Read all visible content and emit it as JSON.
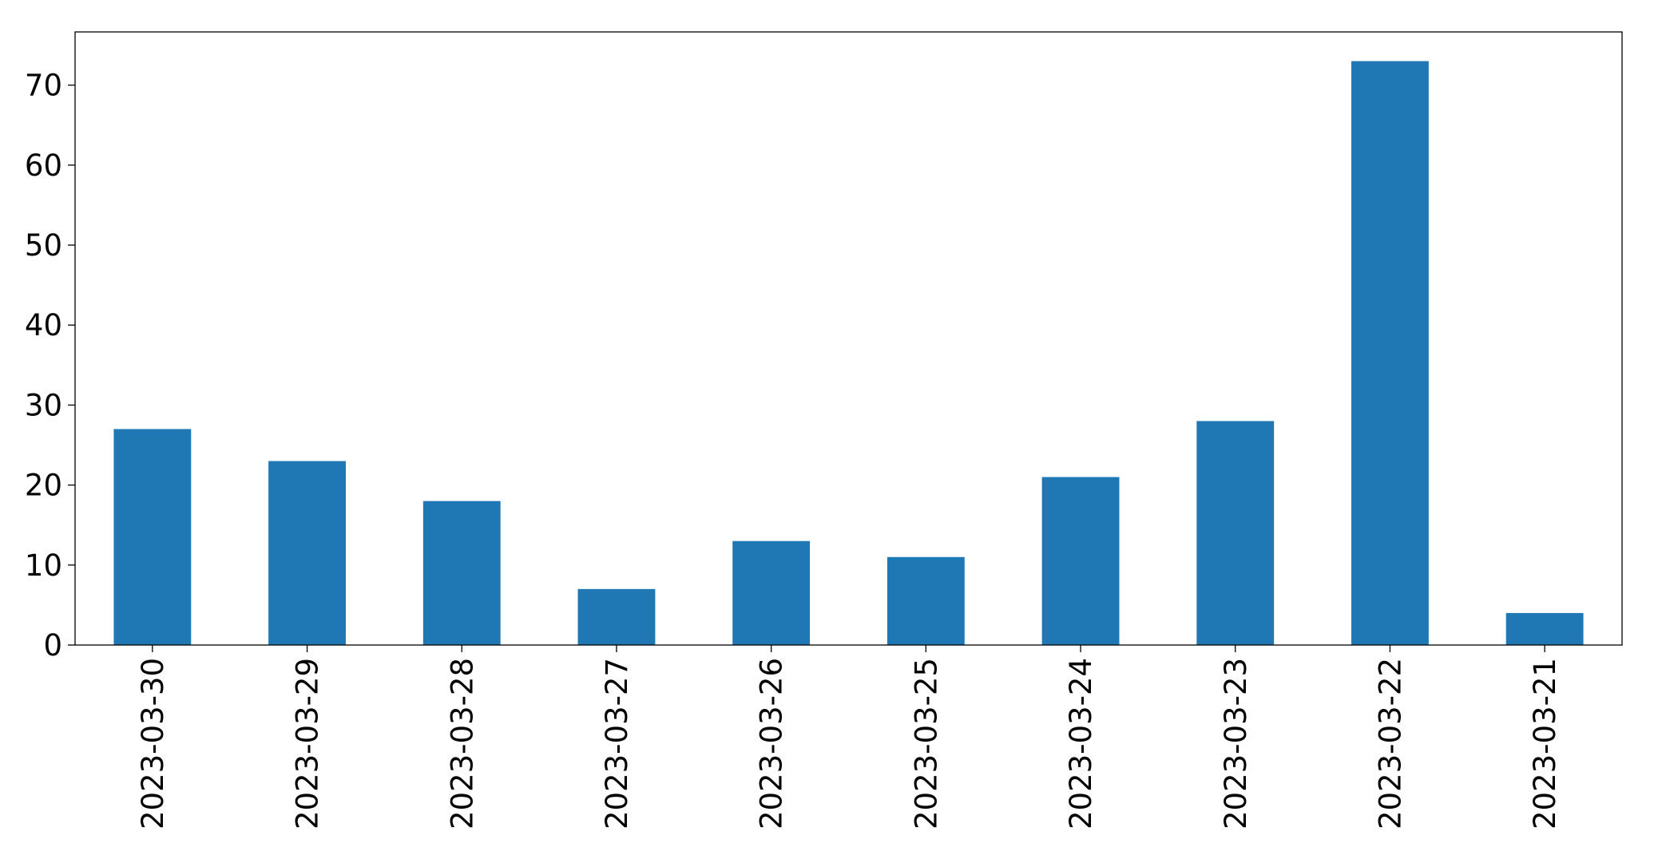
{
  "chart_data": {
    "type": "bar",
    "categories": [
      "2023-03-30",
      "2023-03-29",
      "2023-03-28",
      "2023-03-27",
      "2023-03-26",
      "2023-03-25",
      "2023-03-24",
      "2023-03-23",
      "2023-03-22",
      "2023-03-21"
    ],
    "values": [
      27,
      23,
      18,
      7,
      13,
      11,
      21,
      28,
      73,
      4
    ],
    "color": "#1f77b4",
    "ylim": [
      0,
      76.65
    ],
    "yticks": [
      0,
      10,
      20,
      30,
      40,
      50,
      60,
      70
    ],
    "grid": false
  }
}
